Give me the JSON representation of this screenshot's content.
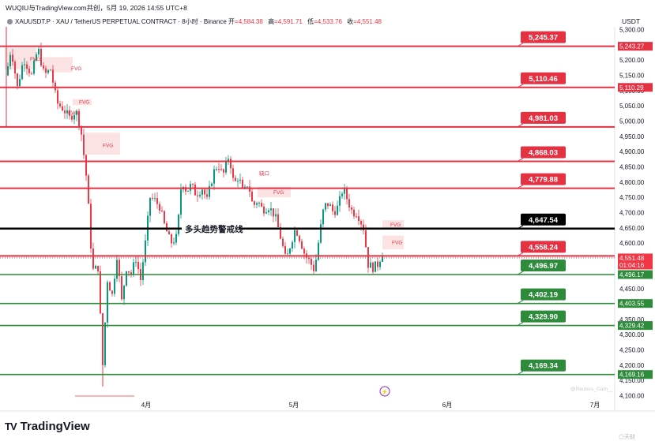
{
  "header": {
    "top_line": "WUQIU与TradingView.com共创，5月 19, 2026 14:55 UTC+8",
    "symbol": "XAUUSDT.P · XAU / TetherUS PERPETUAL CONTRACT · 8小时 · Binance",
    "ohlc": [
      {
        "k": "开",
        "v": "=4,584.38"
      },
      {
        "k": "高",
        "v": "=4,591.71"
      },
      {
        "k": "低",
        "v": "=4,533.76"
      },
      {
        "k": "收",
        "v": "=4,551.48"
      }
    ],
    "currency": "USDT"
  },
  "footer": {
    "brand": "TradingView",
    "watermark": "@Reuters_Gam__",
    "site_mark": "◎天财"
  },
  "colors": {
    "resistance": "#e53243",
    "support": "#2e8b3b",
    "key_line": "#000000",
    "fvg_fill": "#f9dada",
    "up_candle": "#089981",
    "down_candle": "#f23645",
    "price_line": "#f23645"
  },
  "chart_data": {
    "type": "candlestick",
    "title": "",
    "y_axis": {
      "ticks": [
        "5,300.00",
        "5,250.00",
        "5,200.00",
        "5,150.00",
        "5,100.00",
        "5,050.00",
        "5,000.00",
        "4,950.00",
        "4,900.00",
        "4,850.00",
        "4,800.00",
        "4,750.00",
        "4,700.00",
        "4,650.00",
        "4,600.00",
        "4,550.00",
        "4,500.00",
        "4,450.00",
        "4,400.00",
        "4,350.00",
        "4,300.00",
        "4,250.00",
        "4,200.00",
        "4,150.00",
        "4,100.00"
      ],
      "range": [
        4100,
        5300
      ]
    },
    "x_axis": {
      "ticks": [
        "4月",
        "5月",
        "6月",
        "7月"
      ]
    },
    "horizontal_levels": [
      {
        "price": 5245.37,
        "label": "5,245.37",
        "axis_label": "5,243.27",
        "kind": "resistance"
      },
      {
        "price": 5110.46,
        "label": "5,110.46",
        "axis_label": "5,110.29",
        "kind": "resistance"
      },
      {
        "price": 4981.03,
        "label": "4,981.03",
        "kind": "resistance"
      },
      {
        "price": 4868.03,
        "label": "4,868.03",
        "kind": "resistance"
      },
      {
        "price": 4779.88,
        "label": "4,779.88",
        "kind": "resistance"
      },
      {
        "price": 4647.54,
        "label": "4,647.54",
        "kind": "key"
      },
      {
        "price": 4558.24,
        "label": "4,558.24",
        "kind": "resistance"
      },
      {
        "price": 4496.97,
        "label": "4,496.97",
        "axis_label": "4,496.17",
        "kind": "support"
      },
      {
        "price": 4402.19,
        "label": "4,402.19",
        "axis_label": "4,403.55",
        "kind": "support"
      },
      {
        "price": 4329.9,
        "label": "4,329.90",
        "axis_label": "4,329.42",
        "kind": "support"
      },
      {
        "price": 4169.34,
        "label": "4,169.34",
        "axis_label": "4,169.16",
        "kind": "support"
      }
    ],
    "current_price": {
      "price": 4551.48,
      "label": "4,551.48",
      "countdown": "01:04:16"
    },
    "annotations": [
      {
        "text": "多头趋势警戒线",
        "price": 4647.54
      },
      {
        "text": "FVG",
        "price": 5205
      },
      {
        "text": "FVG",
        "price": 5175
      },
      {
        "text": "FVG",
        "price": 5065
      },
      {
        "text": "FVG",
        "price": 5030
      },
      {
        "text": "FVG",
        "price": 4923
      },
      {
        "text": "FVG",
        "price": 4768
      },
      {
        "text": "FVG",
        "price": 4663
      },
      {
        "text": "FVG",
        "price": 4604
      },
      {
        "text": "缺口",
        "price": 4831
      }
    ],
    "fvg_zones": [
      {
        "t0": 0,
        "t1": 40,
        "p_top": 5240,
        "p_bot": 5170
      },
      {
        "t0": 48,
        "t1": 86,
        "p_top": 5210,
        "p_bot": 5160
      },
      {
        "t0": 86,
        "t1": 110,
        "p_top": 5072,
        "p_bot": 5052
      },
      {
        "t0": 102,
        "t1": 146,
        "p_top": 4962,
        "p_bot": 4890
      },
      {
        "t0": 320,
        "t1": 362,
        "p_top": 4785,
        "p_bot": 4750
      },
      {
        "t0": 478,
        "t1": 505,
        "p_top": 4675,
        "p_bot": 4650
      },
      {
        "t0": 478,
        "t1": 505,
        "p_top": 4625,
        "p_bot": 4580
      }
    ],
    "price_path": [
      [
        8,
        5150
      ],
      [
        14,
        5240
      ],
      [
        22,
        5110
      ],
      [
        30,
        5205
      ],
      [
        40,
        5150
      ],
      [
        48,
        5240
      ],
      [
        56,
        5150
      ],
      [
        64,
        5170
      ],
      [
        72,
        5060
      ],
      [
        80,
        5040
      ],
      [
        88,
        5010
      ],
      [
        96,
        5035
      ],
      [
        102,
        4980
      ],
      [
        110,
        4800
      ],
      [
        117,
        4510
      ],
      [
        124,
        4520
      ],
      [
        130,
        4200
      ],
      [
        136,
        4480
      ],
      [
        142,
        4430
      ],
      [
        148,
        4560
      ],
      [
        154,
        4410
      ],
      [
        160,
        4520
      ],
      [
        166,
        4500
      ],
      [
        172,
        4550
      ],
      [
        178,
        4480
      ],
      [
        184,
        4600
      ],
      [
        190,
        4750
      ],
      [
        196,
        4740
      ],
      [
        202,
        4720
      ],
      [
        208,
        4660
      ],
      [
        216,
        4600
      ],
      [
        224,
        4620
      ],
      [
        230,
        4810
      ],
      [
        236,
        4770
      ],
      [
        242,
        4790
      ],
      [
        248,
        4760
      ],
      [
        256,
        4780
      ],
      [
        262,
        4740
      ],
      [
        270,
        4830
      ],
      [
        276,
        4860
      ],
      [
        282,
        4820
      ],
      [
        290,
        4890
      ],
      [
        296,
        4790
      ],
      [
        302,
        4820
      ],
      [
        308,
        4760
      ],
      [
        314,
        4800
      ],
      [
        320,
        4720
      ],
      [
        326,
        4740
      ],
      [
        332,
        4710
      ],
      [
        340,
        4720
      ],
      [
        348,
        4690
      ],
      [
        356,
        4610
      ],
      [
        362,
        4540
      ],
      [
        368,
        4600
      ],
      [
        374,
        4650
      ],
      [
        380,
        4610
      ],
      [
        386,
        4560
      ],
      [
        392,
        4540
      ],
      [
        398,
        4510
      ],
      [
        404,
        4620
      ],
      [
        410,
        4720
      ],
      [
        416,
        4730
      ],
      [
        422,
        4700
      ],
      [
        428,
        4720
      ],
      [
        434,
        4780
      ],
      [
        440,
        4740
      ],
      [
        446,
        4700
      ],
      [
        452,
        4700
      ],
      [
        460,
        4650
      ],
      [
        466,
        4530
      ],
      [
        472,
        4520
      ],
      [
        478,
        4530
      ],
      [
        484,
        4570
      ]
    ]
  }
}
